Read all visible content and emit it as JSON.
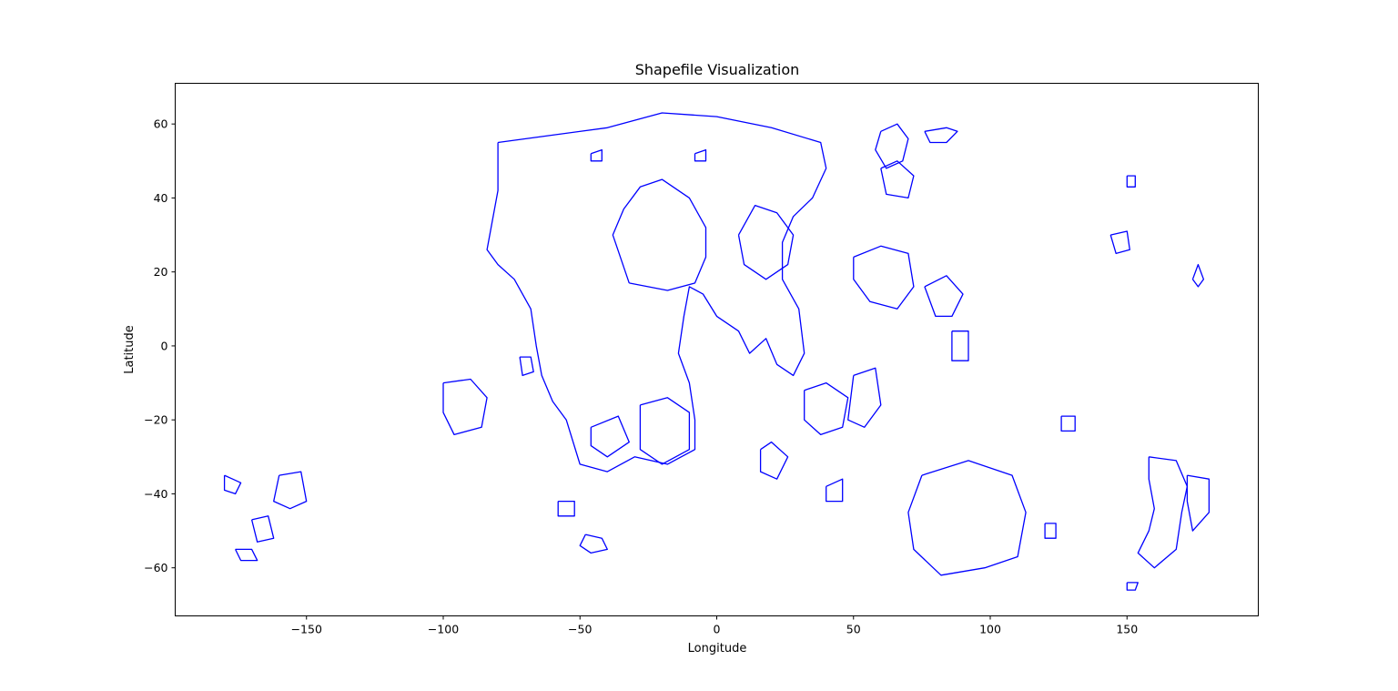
{
  "chart_data": {
    "type": "line",
    "title": "Shapefile Visualization",
    "xlabel": "Longitude",
    "ylabel": "Latitude",
    "xlim": [
      -198,
      198
    ],
    "ylim": [
      -73,
      71
    ],
    "xticks": [
      -150,
      -100,
      -50,
      0,
      50,
      100,
      150
    ],
    "yticks": [
      -60,
      -40,
      -20,
      0,
      20,
      40,
      60
    ],
    "grid": false,
    "legend": "none",
    "line_color": "#0000ff",
    "series": [
      {
        "values": [
          [
            -80,
            55
          ],
          [
            -60,
            57
          ],
          [
            -40,
            59
          ],
          [
            -20,
            63
          ],
          [
            0,
            62
          ],
          [
            20,
            59
          ],
          [
            38,
            55
          ],
          [
            40,
            48
          ],
          [
            35,
            40
          ],
          [
            28,
            35
          ],
          [
            24,
            28
          ],
          [
            24,
            18
          ],
          [
            30,
            10
          ],
          [
            32,
            -2
          ],
          [
            28,
            -8
          ],
          [
            22,
            -5
          ],
          [
            18,
            2
          ],
          [
            12,
            -2
          ],
          [
            8,
            4
          ],
          [
            0,
            8
          ],
          [
            -5,
            14
          ],
          [
            -10,
            16
          ],
          [
            -12,
            8
          ],
          [
            -14,
            -2
          ],
          [
            -10,
            -10
          ],
          [
            -8,
            -20
          ],
          [
            -8,
            -28
          ],
          [
            -18,
            -32
          ],
          [
            -30,
            -30
          ],
          [
            -40,
            -34
          ],
          [
            -50,
            -32
          ],
          [
            -55,
            -20
          ],
          [
            -60,
            -15
          ],
          [
            -64,
            -8
          ],
          [
            -66,
            0
          ],
          [
            -68,
            10
          ],
          [
            -74,
            18
          ],
          [
            -80,
            22
          ],
          [
            -84,
            26
          ],
          [
            -82,
            34
          ],
          [
            -80,
            42
          ],
          [
            -80,
            55
          ]
        ]
      },
      {
        "values": [
          [
            -32,
            17
          ],
          [
            -18,
            15
          ],
          [
            -8,
            17
          ],
          [
            -4,
            24
          ],
          [
            -4,
            32
          ],
          [
            -10,
            40
          ],
          [
            -20,
            45
          ],
          [
            -28,
            43
          ],
          [
            -34,
            37
          ],
          [
            -38,
            30
          ],
          [
            -32,
            17
          ]
        ]
      },
      {
        "values": [
          [
            8,
            30
          ],
          [
            14,
            38
          ],
          [
            22,
            36
          ],
          [
            28,
            30
          ],
          [
            26,
            22
          ],
          [
            18,
            18
          ],
          [
            10,
            22
          ],
          [
            8,
            30
          ]
        ]
      },
      {
        "values": [
          [
            -28,
            -16
          ],
          [
            -18,
            -14
          ],
          [
            -10,
            -18
          ],
          [
            -10,
            -28
          ],
          [
            -20,
            -32
          ],
          [
            -28,
            -28
          ],
          [
            -28,
            -16
          ]
        ]
      },
      {
        "values": [
          [
            -46,
            -22
          ],
          [
            -36,
            -19
          ],
          [
            -32,
            -26
          ],
          [
            -40,
            -30
          ],
          [
            -46,
            -27
          ],
          [
            -46,
            -22
          ]
        ]
      },
      {
        "values": [
          [
            50,
            24
          ],
          [
            60,
            27
          ],
          [
            70,
            25
          ],
          [
            72,
            16
          ],
          [
            66,
            10
          ],
          [
            56,
            12
          ],
          [
            50,
            18
          ],
          [
            50,
            24
          ]
        ]
      },
      {
        "values": [
          [
            32,
            -12
          ],
          [
            40,
            -10
          ],
          [
            48,
            -14
          ],
          [
            46,
            -22
          ],
          [
            38,
            -24
          ],
          [
            32,
            -20
          ],
          [
            32,
            -12
          ]
        ]
      },
      {
        "values": [
          [
            50,
            -8
          ],
          [
            58,
            -6
          ],
          [
            60,
            -16
          ],
          [
            54,
            -22
          ],
          [
            48,
            -20
          ],
          [
            50,
            -8
          ]
        ]
      },
      {
        "values": [
          [
            -100,
            -10
          ],
          [
            -90,
            -9
          ],
          [
            -84,
            -14
          ],
          [
            -86,
            -22
          ],
          [
            -96,
            -24
          ],
          [
            -100,
            -18
          ],
          [
            -100,
            -10
          ]
        ]
      },
      {
        "values": [
          [
            60,
            58
          ],
          [
            66,
            60
          ],
          [
            70,
            56
          ],
          [
            68,
            50
          ],
          [
            62,
            48
          ],
          [
            58,
            53
          ],
          [
            60,
            58
          ]
        ]
      },
      {
        "values": [
          [
            60,
            48
          ],
          [
            66,
            50
          ],
          [
            72,
            46
          ],
          [
            70,
            40
          ],
          [
            62,
            41
          ],
          [
            60,
            48
          ]
        ]
      },
      {
        "values": [
          [
            76,
            58
          ],
          [
            84,
            59
          ],
          [
            88,
            58
          ],
          [
            84,
            55
          ],
          [
            78,
            55
          ],
          [
            76,
            58
          ]
        ]
      },
      {
        "values": [
          [
            76,
            16
          ],
          [
            84,
            19
          ],
          [
            90,
            14
          ],
          [
            86,
            8
          ],
          [
            80,
            8
          ],
          [
            76,
            16
          ]
        ]
      },
      {
        "values": [
          [
            86,
            4
          ],
          [
            92,
            4
          ],
          [
            92,
            -4
          ],
          [
            86,
            -4
          ],
          [
            86,
            4
          ]
        ]
      },
      {
        "values": [
          [
            144,
            30
          ],
          [
            150,
            31
          ],
          [
            151,
            26
          ],
          [
            146,
            25
          ],
          [
            144,
            30
          ]
        ]
      },
      {
        "values": [
          [
            126,
            -19
          ],
          [
            131,
            -19
          ],
          [
            131,
            -23
          ],
          [
            126,
            -23
          ],
          [
            126,
            -19
          ]
        ]
      },
      {
        "values": [
          [
            75,
            -35
          ],
          [
            92,
            -31
          ],
          [
            108,
            -35
          ],
          [
            113,
            -45
          ],
          [
            110,
            -57
          ],
          [
            98,
            -60
          ],
          [
            82,
            -62
          ],
          [
            72,
            -55
          ],
          [
            70,
            -45
          ],
          [
            75,
            -35
          ]
        ]
      },
      {
        "values": [
          [
            158,
            -30
          ],
          [
            168,
            -31
          ],
          [
            172,
            -38
          ],
          [
            170,
            -45
          ],
          [
            168,
            -55
          ],
          [
            160,
            -60
          ],
          [
            154,
            -56
          ],
          [
            158,
            -50
          ],
          [
            160,
            -44
          ],
          [
            158,
            -36
          ],
          [
            158,
            -30
          ]
        ]
      },
      {
        "values": [
          [
            172,
            -35
          ],
          [
            180,
            -36
          ],
          [
            180,
            -45
          ],
          [
            174,
            -50
          ],
          [
            172,
            -42
          ],
          [
            172,
            -35
          ]
        ]
      },
      {
        "values": [
          [
            -180,
            -35
          ],
          [
            -174,
            -37
          ],
          [
            -176,
            -40
          ],
          [
            -180,
            -39
          ],
          [
            -180,
            -35
          ]
        ]
      },
      {
        "values": [
          [
            -160,
            -35
          ],
          [
            -152,
            -34
          ],
          [
            -150,
            -42
          ],
          [
            -156,
            -44
          ],
          [
            -162,
            -42
          ],
          [
            -160,
            -35
          ]
        ]
      },
      {
        "values": [
          [
            -170,
            -47
          ],
          [
            -164,
            -46
          ],
          [
            -162,
            -52
          ],
          [
            -168,
            -53
          ],
          [
            -170,
            -47
          ]
        ]
      },
      {
        "values": [
          [
            -176,
            -55
          ],
          [
            -170,
            -55
          ],
          [
            -168,
            -58
          ],
          [
            -174,
            -58
          ],
          [
            -176,
            -55
          ]
        ]
      },
      {
        "values": [
          [
            -48,
            -51
          ],
          [
            -42,
            -52
          ],
          [
            -40,
            -55
          ],
          [
            -46,
            -56
          ],
          [
            -50,
            -54
          ],
          [
            -48,
            -51
          ]
        ]
      },
      {
        "values": [
          [
            -58,
            -42
          ],
          [
            -52,
            -42
          ],
          [
            -52,
            -46
          ],
          [
            -58,
            -46
          ],
          [
            -58,
            -42
          ]
        ]
      },
      {
        "values": [
          [
            -72,
            -3
          ],
          [
            -68,
            -3
          ],
          [
            -67,
            -7
          ],
          [
            -71,
            -8
          ],
          [
            -72,
            -3
          ]
        ]
      },
      {
        "values": [
          [
            16,
            -28
          ],
          [
            20,
            -26
          ],
          [
            26,
            -30
          ],
          [
            22,
            -36
          ],
          [
            16,
            -34
          ],
          [
            16,
            -28
          ]
        ]
      },
      {
        "values": [
          [
            40,
            -38
          ],
          [
            46,
            -36
          ],
          [
            46,
            -42
          ],
          [
            40,
            -42
          ],
          [
            40,
            -38
          ]
        ]
      },
      {
        "values": [
          [
            120,
            -48
          ],
          [
            124,
            -48
          ],
          [
            124,
            -52
          ],
          [
            120,
            -52
          ],
          [
            120,
            -48
          ]
        ]
      },
      {
        "values": [
          [
            150,
            -64
          ],
          [
            154,
            -64
          ],
          [
            153,
            -66
          ],
          [
            150,
            -66
          ],
          [
            150,
            -64
          ]
        ]
      },
      {
        "values": [
          [
            174,
            18
          ],
          [
            176,
            22
          ],
          [
            178,
            18
          ],
          [
            176,
            16
          ],
          [
            174,
            18
          ]
        ]
      },
      {
        "values": [
          [
            -8,
            52
          ],
          [
            -4,
            53
          ],
          [
            -4,
            50
          ],
          [
            -8,
            50
          ],
          [
            -8,
            52
          ]
        ]
      },
      {
        "values": [
          [
            -46,
            52
          ],
          [
            -42,
            53
          ],
          [
            -42,
            50
          ],
          [
            -46,
            50
          ],
          [
            -46,
            52
          ]
        ]
      },
      {
        "values": [
          [
            150,
            46
          ],
          [
            153,
            46
          ],
          [
            153,
            43
          ],
          [
            150,
            43
          ],
          [
            150,
            46
          ]
        ]
      }
    ]
  }
}
